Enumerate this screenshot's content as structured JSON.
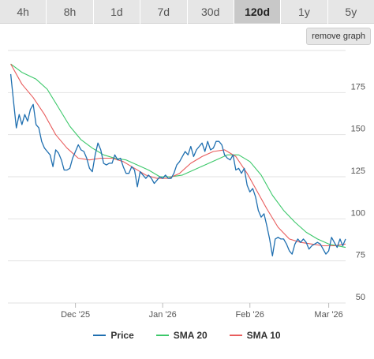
{
  "timeframes": [
    {
      "label": "4h",
      "active": false
    },
    {
      "label": "8h",
      "active": false
    },
    {
      "label": "1d",
      "active": false
    },
    {
      "label": "7d",
      "active": false
    },
    {
      "label": "30d",
      "active": false
    },
    {
      "label": "120d",
      "active": true
    },
    {
      "label": "1y",
      "active": false
    },
    {
      "label": "5y",
      "active": false
    }
  ],
  "remove_graph_label": "remove graph",
  "chart_data": {
    "type": "line",
    "ylim": [
      50,
      200
    ],
    "yticks": [
      50,
      75,
      100,
      125,
      150,
      175
    ],
    "xlim": [
      "2025-11-07",
      "2026-03-07"
    ],
    "xticks": [
      {
        "date": "2025-12-01",
        "label": "Dec '25"
      },
      {
        "date": "2026-01-01",
        "label": "Jan '26"
      },
      {
        "date": "2026-02-01",
        "label": "Feb '26"
      },
      {
        "date": "2026-03-01",
        "label": "Mar '26"
      }
    ],
    "grid": true,
    "legend_position": "bottom",
    "series": [
      {
        "name": "Price",
        "color": "#1f6fb0",
        "points": [
          [
            "2025-11-08",
            186
          ],
          [
            "2025-11-09",
            170
          ],
          [
            "2025-11-10",
            154
          ],
          [
            "2025-11-11",
            162
          ],
          [
            "2025-11-12",
            156
          ],
          [
            "2025-11-13",
            162
          ],
          [
            "2025-11-14",
            158
          ],
          [
            "2025-11-15",
            165
          ],
          [
            "2025-11-16",
            168
          ],
          [
            "2025-11-17",
            156
          ],
          [
            "2025-11-18",
            154
          ],
          [
            "2025-11-19",
            146
          ],
          [
            "2025-11-20",
            142
          ],
          [
            "2025-11-21",
            140
          ],
          [
            "2025-11-22",
            138
          ],
          [
            "2025-11-23",
            131
          ],
          [
            "2025-11-24",
            141
          ],
          [
            "2025-11-25",
            139
          ],
          [
            "2025-11-26",
            135
          ],
          [
            "2025-11-27",
            129
          ],
          [
            "2025-11-28",
            129
          ],
          [
            "2025-11-29",
            130
          ],
          [
            "2025-11-30",
            136
          ],
          [
            "2025-12-01",
            140
          ],
          [
            "2025-12-02",
            144
          ],
          [
            "2025-12-03",
            141
          ],
          [
            "2025-12-04",
            140
          ],
          [
            "2025-12-05",
            136
          ],
          [
            "2025-12-06",
            130
          ],
          [
            "2025-12-07",
            128
          ],
          [
            "2025-12-08",
            138
          ],
          [
            "2025-12-09",
            145
          ],
          [
            "2025-12-10",
            141
          ],
          [
            "2025-12-11",
            133
          ],
          [
            "2025-12-12",
            132
          ],
          [
            "2025-12-13",
            133
          ],
          [
            "2025-12-14",
            133
          ],
          [
            "2025-12-15",
            138
          ],
          [
            "2025-12-16",
            135
          ],
          [
            "2025-12-17",
            136
          ],
          [
            "2025-12-18",
            131
          ],
          [
            "2025-12-19",
            127
          ],
          [
            "2025-12-20",
            127
          ],
          [
            "2025-12-21",
            131
          ],
          [
            "2025-12-22",
            129
          ],
          [
            "2025-12-23",
            119
          ],
          [
            "2025-12-24",
            128
          ],
          [
            "2025-12-25",
            126
          ],
          [
            "2025-12-26",
            124
          ],
          [
            "2025-12-27",
            126
          ],
          [
            "2025-12-28",
            124
          ],
          [
            "2025-12-29",
            121
          ],
          [
            "2025-12-30",
            123
          ],
          [
            "2025-12-31",
            125
          ],
          [
            "2026-01-01",
            124
          ],
          [
            "2026-01-02",
            126
          ],
          [
            "2026-01-03",
            124
          ],
          [
            "2026-01-04",
            124
          ],
          [
            "2026-01-05",
            127
          ],
          [
            "2026-01-06",
            132
          ],
          [
            "2026-01-07",
            134
          ],
          [
            "2026-01-08",
            137
          ],
          [
            "2026-01-09",
            140
          ],
          [
            "2026-01-10",
            138
          ],
          [
            "2026-01-11",
            143
          ],
          [
            "2026-01-12",
            137
          ],
          [
            "2026-01-13",
            141
          ],
          [
            "2026-01-14",
            143
          ],
          [
            "2026-01-15",
            145
          ],
          [
            "2026-01-16",
            140
          ],
          [
            "2026-01-17",
            146
          ],
          [
            "2026-01-18",
            141
          ],
          [
            "2026-01-19",
            142
          ],
          [
            "2026-01-20",
            146
          ],
          [
            "2026-01-21",
            146
          ],
          [
            "2026-01-22",
            144
          ],
          [
            "2026-01-23",
            138
          ],
          [
            "2026-01-24",
            136
          ],
          [
            "2026-01-25",
            135
          ],
          [
            "2026-01-26",
            138
          ],
          [
            "2026-01-27",
            129
          ],
          [
            "2026-01-28",
            130
          ],
          [
            "2026-01-29",
            127
          ],
          [
            "2026-01-30",
            130
          ],
          [
            "2026-01-31",
            120
          ],
          [
            "2026-02-01",
            116
          ],
          [
            "2026-02-02",
            118
          ],
          [
            "2026-02-03",
            113
          ],
          [
            "2026-02-04",
            105
          ],
          [
            "2026-02-05",
            101
          ],
          [
            "2026-02-06",
            103
          ],
          [
            "2026-02-07",
            96
          ],
          [
            "2026-02-08",
            88
          ],
          [
            "2026-02-09",
            78
          ],
          [
            "2026-02-10",
            88
          ],
          [
            "2026-02-11",
            89
          ],
          [
            "2026-02-12",
            88
          ],
          [
            "2026-02-13",
            88
          ],
          [
            "2026-02-14",
            85
          ],
          [
            "2026-02-15",
            81
          ],
          [
            "2026-02-16",
            79
          ],
          [
            "2026-02-17",
            85
          ],
          [
            "2026-02-18",
            88
          ],
          [
            "2026-02-19",
            86
          ],
          [
            "2026-02-20",
            88
          ],
          [
            "2026-02-21",
            86
          ],
          [
            "2026-02-22",
            82
          ],
          [
            "2026-02-23",
            84
          ],
          [
            "2026-02-24",
            85
          ],
          [
            "2026-02-25",
            86
          ],
          [
            "2026-02-26",
            85
          ],
          [
            "2026-02-27",
            82
          ],
          [
            "2026-02-28",
            79
          ],
          [
            "2026-03-01",
            81
          ],
          [
            "2026-03-02",
            89
          ],
          [
            "2026-03-03",
            86
          ],
          [
            "2026-03-04",
            83
          ],
          [
            "2026-03-05",
            88
          ],
          [
            "2026-03-06",
            84
          ],
          [
            "2026-03-07",
            88
          ]
        ]
      },
      {
        "name": "SMA 20",
        "color": "#3cc86a",
        "points": [
          [
            "2025-11-08",
            192
          ],
          [
            "2025-11-12",
            187
          ],
          [
            "2025-11-17",
            183
          ],
          [
            "2025-11-21",
            177
          ],
          [
            "2025-11-25",
            166
          ],
          [
            "2025-11-29",
            155
          ],
          [
            "2025-12-03",
            147
          ],
          [
            "2025-12-07",
            142
          ],
          [
            "2025-12-11",
            138
          ],
          [
            "2025-12-15",
            136
          ],
          [
            "2025-12-19",
            135
          ],
          [
            "2025-12-23",
            132
          ],
          [
            "2025-12-27",
            129
          ],
          [
            "2025-12-31",
            125
          ],
          [
            "2026-01-04",
            125
          ],
          [
            "2026-01-08",
            126
          ],
          [
            "2026-01-12",
            129
          ],
          [
            "2026-01-16",
            132
          ],
          [
            "2026-01-20",
            135
          ],
          [
            "2026-01-24",
            138
          ],
          [
            "2026-01-28",
            138
          ],
          [
            "2026-02-01",
            134
          ],
          [
            "2026-02-05",
            126
          ],
          [
            "2026-02-09",
            114
          ],
          [
            "2026-02-13",
            105
          ],
          [
            "2026-02-17",
            98
          ],
          [
            "2026-02-21",
            92
          ],
          [
            "2026-02-25",
            88
          ],
          [
            "2026-03-01",
            85
          ],
          [
            "2026-03-07",
            83
          ]
        ]
      },
      {
        "name": "SMA 10",
        "color": "#e85c5c",
        "points": [
          [
            "2025-11-08",
            192
          ],
          [
            "2025-11-12",
            180
          ],
          [
            "2025-11-16",
            172
          ],
          [
            "2025-11-20",
            162
          ],
          [
            "2025-11-24",
            150
          ],
          [
            "2025-11-28",
            142
          ],
          [
            "2025-12-02",
            136
          ],
          [
            "2025-12-06",
            135
          ],
          [
            "2025-12-10",
            136
          ],
          [
            "2025-12-14",
            136
          ],
          [
            "2025-12-18",
            134
          ],
          [
            "2025-12-22",
            130
          ],
          [
            "2025-12-26",
            126
          ],
          [
            "2025-12-30",
            124
          ],
          [
            "2026-01-03",
            124
          ],
          [
            "2026-01-07",
            127
          ],
          [
            "2026-01-11",
            133
          ],
          [
            "2026-01-15",
            137
          ],
          [
            "2026-01-19",
            140
          ],
          [
            "2026-01-23",
            141
          ],
          [
            "2026-01-27",
            137
          ],
          [
            "2026-01-31",
            127
          ],
          [
            "2026-02-03",
            118
          ],
          [
            "2026-02-07",
            106
          ],
          [
            "2026-02-11",
            95
          ],
          [
            "2026-02-15",
            88
          ],
          [
            "2026-02-19",
            86
          ],
          [
            "2026-02-23",
            85
          ],
          [
            "2026-02-27",
            84
          ],
          [
            "2026-03-03",
            84
          ],
          [
            "2026-03-07",
            85
          ]
        ]
      }
    ]
  }
}
